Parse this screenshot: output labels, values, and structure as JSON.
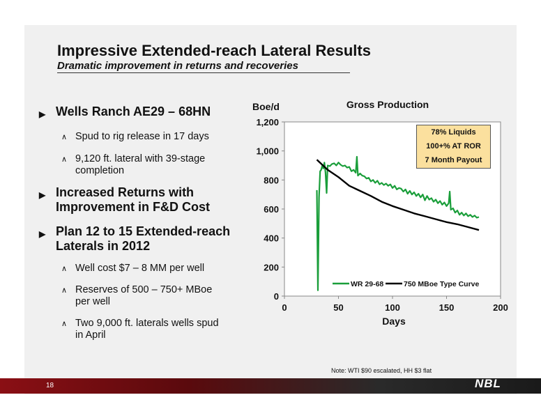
{
  "slide": {
    "title": "Impressive Extended-reach Lateral Results",
    "subtitle": "Dramatic improvement in returns and recoveries",
    "bullets": [
      {
        "level": 1,
        "lines": [
          "Wells Ranch AE29 – 68HN"
        ]
      },
      {
        "level": 2,
        "lines": [
          "Spud to rig release in 17 days"
        ]
      },
      {
        "level": 2,
        "lines": [
          "9,120 ft. lateral with 39-stage",
          "completion"
        ]
      },
      {
        "level": 1,
        "lines": [
          "Increased Returns with",
          "Improvement in F&D Cost"
        ]
      },
      {
        "level": 1,
        "lines": [
          "Plan 12 to 15 Extended-reach",
          "Laterals in 2012"
        ]
      },
      {
        "level": 2,
        "lines": [
          "Well cost $7 – 8 MM per well"
        ]
      },
      {
        "level": 2,
        "lines": [
          "Reserves of 500 – 750+ MBoe",
          "per well"
        ]
      },
      {
        "level": 2,
        "lines": [
          "Two 9,000 ft. laterals wells spud",
          "in April"
        ]
      }
    ],
    "bullet_marker_l1": "▶",
    "bullet_marker_l2": "∧",
    "note": "Note: WTI $90 escalated, HH $3 flat",
    "page_number": "18",
    "logo_text": "NBL"
  },
  "callout": {
    "lines": [
      "78% Liquids",
      "100+% AT ROR",
      "7 Month Payout"
    ],
    "background": "#fbe09e"
  },
  "chart_data": {
    "type": "line",
    "title": "Gross Production",
    "xlabel": "Days",
    "ylabel": "Boe/d",
    "xlim": [
      0,
      200
    ],
    "ylim": [
      0,
      1200
    ],
    "xticks": [
      0,
      50,
      100,
      150,
      200
    ],
    "yticks": [
      0,
      200,
      400,
      600,
      800,
      1000,
      1200
    ],
    "xtick_labels": [
      "0",
      "50",
      "100",
      "150",
      "200"
    ],
    "ytick_labels": [
      "0",
      "200",
      "400",
      "800",
      "1,000",
      "1,200"
    ],
    "ytick_labels_full": [
      "0",
      "200",
      "400",
      "600",
      "800",
      "1,000",
      "1,200"
    ],
    "grid": false,
    "legend_position": "bottom-inside",
    "series": [
      {
        "name": "WR 29-68",
        "color": "#1a9e3a",
        "points": [
          [
            30,
            730
          ],
          [
            31,
            40
          ],
          [
            32,
            680
          ],
          [
            33,
            860
          ],
          [
            34,
            870
          ],
          [
            35,
            900
          ],
          [
            36,
            880
          ],
          [
            37,
            920
          ],
          [
            38,
            850
          ],
          [
            39,
            710
          ],
          [
            40,
            900
          ],
          [
            42,
            895
          ],
          [
            44,
            910
          ],
          [
            46,
            915
          ],
          [
            48,
            900
          ],
          [
            50,
            920
          ],
          [
            52,
            905
          ],
          [
            54,
            895
          ],
          [
            56,
            900
          ],
          [
            58,
            885
          ],
          [
            60,
            890
          ],
          [
            62,
            860
          ],
          [
            64,
            870
          ],
          [
            66,
            850
          ],
          [
            67,
            960
          ],
          [
            68,
            830
          ],
          [
            70,
            845
          ],
          [
            72,
            830
          ],
          [
            74,
            825
          ],
          [
            76,
            810
          ],
          [
            78,
            815
          ],
          [
            80,
            790
          ],
          [
            82,
            800
          ],
          [
            84,
            780
          ],
          [
            86,
            795
          ],
          [
            88,
            770
          ],
          [
            90,
            780
          ],
          [
            92,
            765
          ],
          [
            94,
            775
          ],
          [
            96,
            760
          ],
          [
            98,
            770
          ],
          [
            100,
            745
          ],
          [
            102,
            760
          ],
          [
            104,
            735
          ],
          [
            106,
            745
          ],
          [
            108,
            740
          ],
          [
            110,
            720
          ],
          [
            112,
            735
          ],
          [
            114,
            705
          ],
          [
            116,
            725
          ],
          [
            118,
            700
          ],
          [
            120,
            715
          ],
          [
            122,
            690
          ],
          [
            124,
            705
          ],
          [
            126,
            680
          ],
          [
            128,
            700
          ],
          [
            130,
            660
          ],
          [
            132,
            690
          ],
          [
            134,
            665
          ],
          [
            136,
            675
          ],
          [
            138,
            650
          ],
          [
            140,
            665
          ],
          [
            142,
            640
          ],
          [
            144,
            655
          ],
          [
            146,
            630
          ],
          [
            148,
            645
          ],
          [
            150,
            620
          ],
          [
            152,
            640
          ],
          [
            153,
            720
          ],
          [
            154,
            595
          ],
          [
            156,
            605
          ],
          [
            158,
            575
          ],
          [
            160,
            590
          ],
          [
            162,
            560
          ],
          [
            164,
            575
          ],
          [
            166,
            555
          ],
          [
            168,
            570
          ],
          [
            170,
            550
          ],
          [
            172,
            560
          ],
          [
            174,
            545
          ],
          [
            176,
            555
          ],
          [
            178,
            540
          ],
          [
            180,
            545
          ]
        ]
      },
      {
        "name": "750 MBoe Type Curve",
        "color": "#000000",
        "points": [
          [
            30,
            940
          ],
          [
            40,
            870
          ],
          [
            50,
            820
          ],
          [
            60,
            760
          ],
          [
            70,
            725
          ],
          [
            80,
            690
          ],
          [
            90,
            650
          ],
          [
            100,
            620
          ],
          [
            110,
            595
          ],
          [
            120,
            570
          ],
          [
            130,
            550
          ],
          [
            140,
            530
          ],
          [
            150,
            510
          ],
          [
            160,
            495
          ],
          [
            170,
            475
          ],
          [
            180,
            455
          ]
        ]
      }
    ]
  }
}
